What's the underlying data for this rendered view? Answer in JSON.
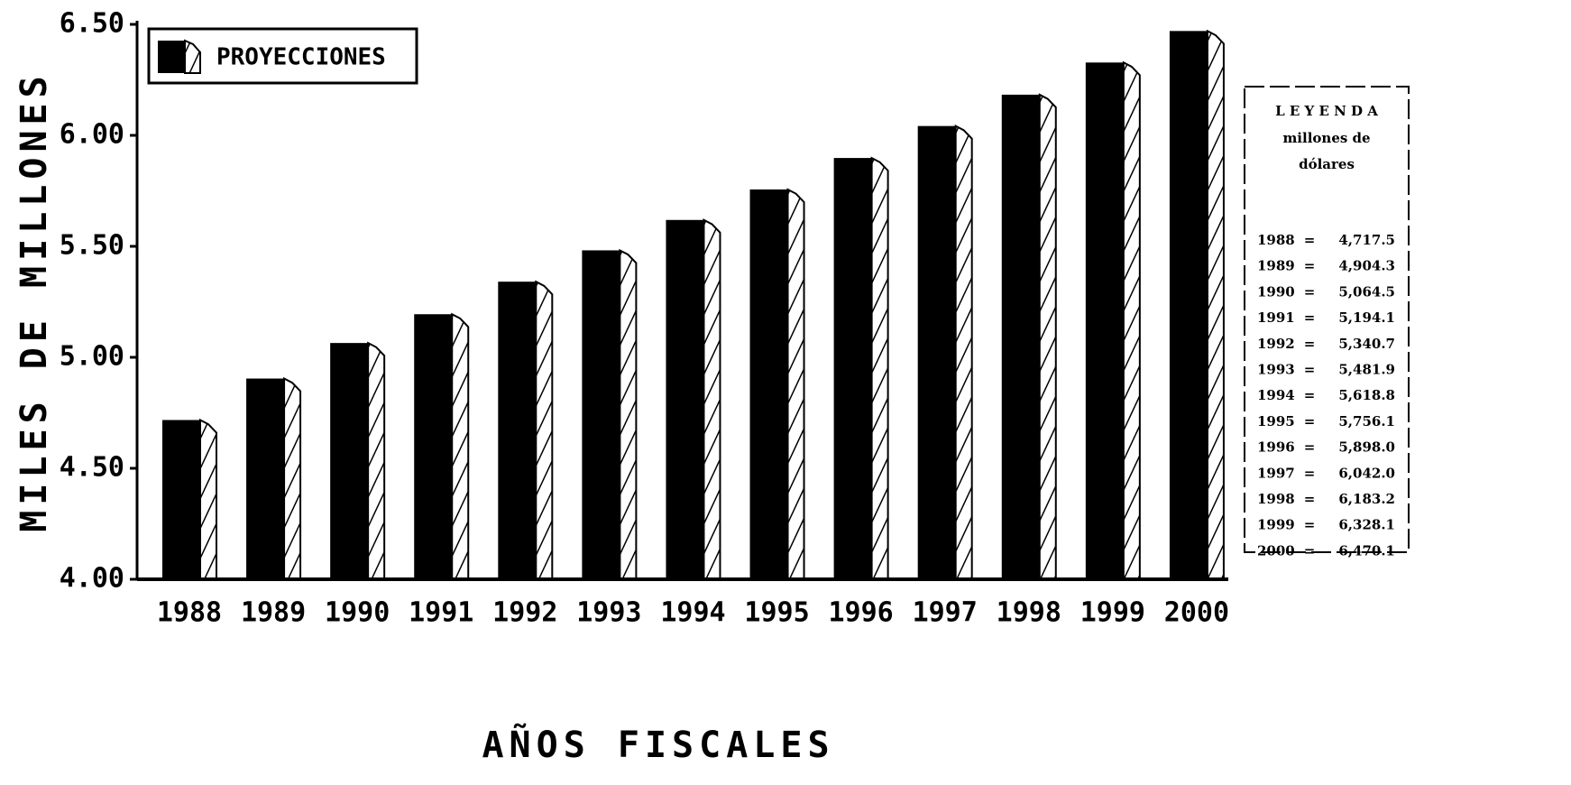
{
  "chart_data": {
    "type": "bar",
    "y_label": "MILES DE MILLONES",
    "x_label": "AÑOS FISCALES",
    "series_name": "PROYECCIONES",
    "color": "#000000",
    "categories": [
      "1988",
      "1989",
      "1990",
      "1991",
      "1992",
      "1993",
      "1994",
      "1995",
      "1996",
      "1997",
      "1998",
      "1999",
      "2000"
    ],
    "values": [
      4.7175,
      4.9043,
      5.0645,
      5.1941,
      5.3407,
      5.4819,
      5.6188,
      5.7561,
      5.898,
      6.042,
      6.1832,
      6.3281,
      6.4701
    ],
    "value_labels": [
      "4,717.5",
      "4,904.3",
      "5,064.5",
      "5,194.1",
      "5,340.7",
      "5,481.9",
      "5,618.8",
      "5,756.1",
      "5,898.0",
      "6,042.0",
      "6,183.2",
      "6,328.1",
      "6,470.1"
    ],
    "ylim": [
      4,
      6.5
    ],
    "yticks": [
      {
        "value": 4,
        "label": "4.00"
      },
      {
        "value": 4.5,
        "label": "4.50"
      },
      {
        "value": 5,
        "label": "5.00"
      },
      {
        "value": 5.5,
        "label": "5.50"
      },
      {
        "value": 6,
        "label": "6.00"
      },
      {
        "value": 6.5,
        "label": "6.50"
      }
    ],
    "legend_table": {
      "title": "L E Y E N D A",
      "unit_line1": "millones de",
      "unit_line2": "dólares",
      "separator": "="
    }
  }
}
